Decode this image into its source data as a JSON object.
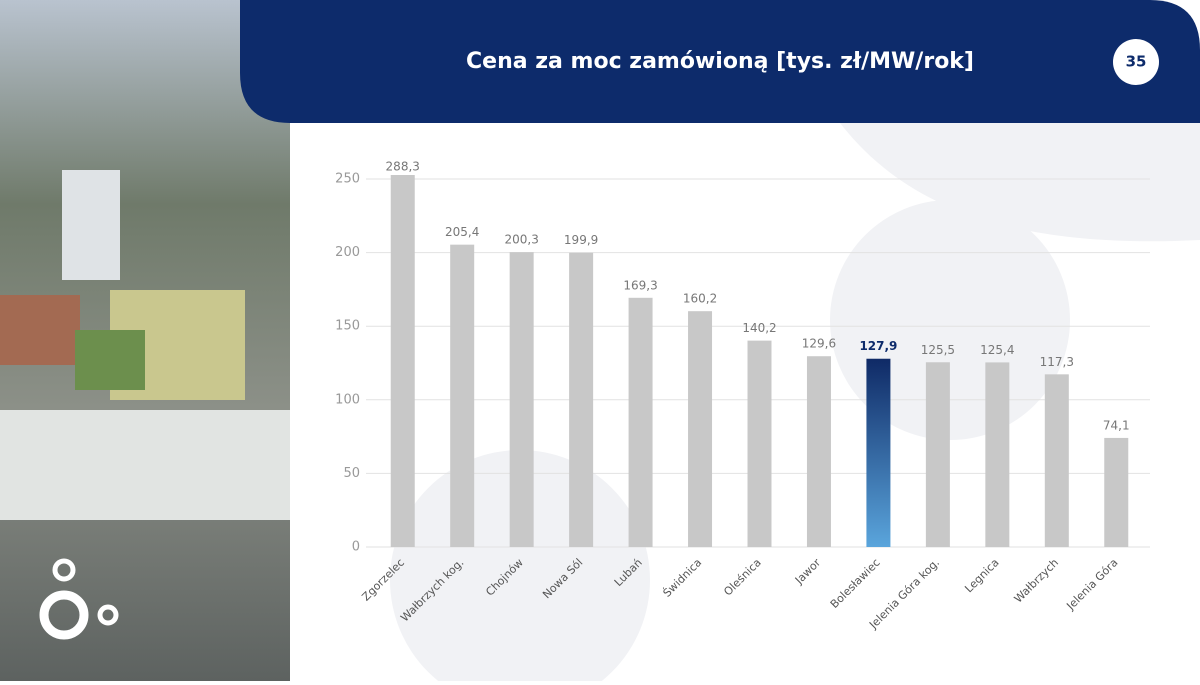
{
  "slide": {
    "page_number": "35"
  },
  "chart_data": {
    "type": "bar",
    "title": "Cena za moc zamówioną [tys. zł/MW/rok]",
    "categories": [
      "Zgorzelec",
      "Wałbrzych kog.",
      "Chojnów",
      "Nowa Sól",
      "Lubań",
      "Świdnica",
      "Oleśnica",
      "Jawor",
      "Bolesławiec",
      "Jelenia Góra kog.",
      "Legnica",
      "Wałbrzych",
      "Jelenia Góra"
    ],
    "values": [
      288.3,
      205.4,
      200.3,
      199.9,
      169.3,
      160.2,
      140.2,
      129.6,
      127.9,
      125.5,
      125.4,
      117.3,
      74.1
    ],
    "value_labels": [
      "288,3",
      "205,4",
      "200,3",
      "199,9",
      "169,3",
      "160,2",
      "140,2",
      "129,6",
      "127,9",
      "125,5",
      "125,4",
      "117,3",
      "74,1"
    ],
    "color": "#c8c8c8",
    "highlight": {
      "index": 8,
      "colors": [
        "#0f2a66",
        "#5aa5dc"
      ]
    },
    "ylim": [
      0,
      250
    ],
    "yticks": [
      0,
      50,
      100,
      150,
      200,
      250
    ],
    "grid": true
  }
}
